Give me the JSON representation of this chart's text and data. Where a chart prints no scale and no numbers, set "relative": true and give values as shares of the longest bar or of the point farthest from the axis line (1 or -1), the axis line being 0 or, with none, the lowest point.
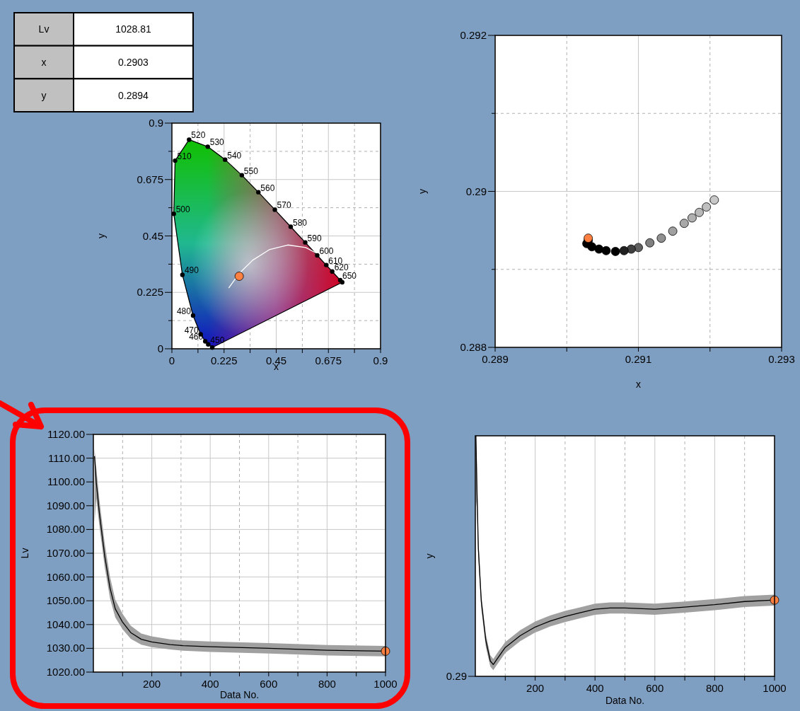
{
  "chart_data": [
    {
      "type": "other",
      "categories": [
        "Lv",
        "x",
        "y"
      ],
      "values": [
        1028.81,
        0.2903,
        0.2894
      ],
      "data_labels": true
    },
    {
      "type": "line",
      "xlabel": "x",
      "ylabel": "y",
      "xlim": [
        0,
        0.9
      ],
      "ylim": [
        0,
        0.9
      ],
      "grid": true,
      "xticks": [
        0,
        {
          "value": 0.1125,
          "label": null
        },
        0.225,
        {
          "value": 0.3375,
          "label": null
        },
        0.45,
        {
          "value": 0.5625,
          "label": null
        },
        0.675,
        {
          "value": 0.7875,
          "label": null
        },
        0.9
      ],
      "yticks": [
        0,
        {
          "value": 0.1125,
          "label": null
        },
        0.225,
        {
          "value": 0.3375,
          "label": null
        },
        0.45,
        {
          "value": 0.5625,
          "label": null
        },
        0.675,
        {
          "value": 0.7875,
          "label": null
        },
        0.9
      ],
      "series": [
        {
          "type": "line",
          "color": "#000000",
          "marker": "circle",
          "x": [
            0.1741,
            0.1566,
            0.144,
            0.1241,
            0.0913,
            0.0454,
            0.0082,
            0.0139,
            0.0743,
            0.1547,
            0.2296,
            0.3016,
            0.3731,
            0.4441,
            0.5125,
            0.5752,
            0.627,
            0.6658,
            0.6915,
            0.726,
            0.7347
          ],
          "values": [
            0.005,
            0.0177,
            0.0297,
            0.0578,
            0.1327,
            0.295,
            0.5384,
            0.7502,
            0.8338,
            0.8059,
            0.7543,
            0.6923,
            0.6245,
            0.5547,
            0.4866,
            0.4242,
            0.3725,
            0.334,
            0.3083,
            0.274,
            0.2653
          ]
        },
        {
          "type": "line",
          "color": "#000000",
          "x": [
            0.7347,
            0.1741
          ],
          "values": [
            0.2653,
            0.005
          ]
        },
        {
          "type": "line",
          "color": "#ffffff",
          "x": [
            0.245,
            0.29,
            0.348,
            0.42,
            0.5,
            0.577,
            0.62
          ],
          "values": [
            0.242,
            0.3,
            0.353,
            0.395,
            0.414,
            0.404,
            0.383
          ]
        },
        {
          "type": "scatter",
          "color": "#ff8040",
          "x": [
            0.2903
          ],
          "values": [
            0.2894
          ]
        }
      ],
      "annotations": [
        {
          "text": "450",
          "x": 0.1566,
          "y": 0.0177
        },
        {
          "text": "460",
          "x": 0.144,
          "y": 0.0297
        },
        {
          "text": "470",
          "x": 0.1241,
          "y": 0.0578
        },
        {
          "text": "480",
          "x": 0.0913,
          "y": 0.1327
        },
        {
          "text": "490",
          "x": 0.0454,
          "y": 0.295
        },
        {
          "text": "500",
          "x": 0.0082,
          "y": 0.5384
        },
        {
          "text": "510",
          "x": 0.0139,
          "y": 0.7502
        },
        {
          "text": "520",
          "x": 0.0743,
          "y": 0.8338
        },
        {
          "text": "530",
          "x": 0.1547,
          "y": 0.8059
        },
        {
          "text": "540",
          "x": 0.2296,
          "y": 0.7543
        },
        {
          "text": "550",
          "x": 0.3016,
          "y": 0.6923
        },
        {
          "text": "560",
          "x": 0.3731,
          "y": 0.6245
        },
        {
          "text": "570",
          "x": 0.4441,
          "y": 0.5547
        },
        {
          "text": "580",
          "x": 0.5125,
          "y": 0.4866
        },
        {
          "text": "590",
          "x": 0.5752,
          "y": 0.4242
        },
        {
          "text": "600",
          "x": 0.627,
          "y": 0.3725
        },
        {
          "text": "610",
          "x": 0.6658,
          "y": 0.334
        },
        {
          "text": "620",
          "x": 0.6915,
          "y": 0.3083
        },
        {
          "text": "650",
          "x": 0.726,
          "y": 0.274
        }
      ]
    },
    {
      "type": "scatter",
      "xlabel": "x",
      "ylabel": "y",
      "xlim": [
        0.289,
        0.293
      ],
      "ylim": [
        0.288,
        0.292
      ],
      "grid": true,
      "marker": "circle",
      "xticks": [
        0.289,
        {
          "value": 0.29,
          "label": null
        },
        0.291,
        {
          "value": 0.292,
          "label": null
        },
        0.293
      ],
      "yticks": [
        0.288,
        {
          "value": 0.289,
          "label": null
        },
        0.29,
        {
          "value": 0.291,
          "label": null
        },
        0.292
      ],
      "series": [
        {
          "x": [
            0.29206,
            0.29195,
            0.29185,
            0.29175,
            0.29164,
            0.29148,
            0.29132,
            0.29116,
            0.291,
            0.2909,
            0.2908,
            0.29068,
            0.29055,
            0.29045,
            0.29035,
            0.29028,
            0.2903
          ],
          "values": [
            0.28989,
            0.2898,
            0.28973,
            0.28966,
            0.28959,
            0.28949,
            0.2894,
            0.28934,
            0.28928,
            0.28926,
            0.28924,
            0.28923,
            0.28924,
            0.28926,
            0.28929,
            0.28933,
            0.28937
          ],
          "colors": [
            "#c8c8c8",
            "#c0c0c0",
            "#b8b8b8",
            "#b0b0b0",
            "#a8a8a8",
            "#a0a0a0",
            "#909090",
            "#808080",
            "#606060",
            "#404040",
            "#202020",
            "#000000",
            "#000000",
            "#000000",
            "#000000",
            "#000000",
            "#000000"
          ]
        },
        {
          "color": "#ff8040",
          "x": [
            0.2903
          ],
          "values": [
            0.2894
          ]
        }
      ]
    },
    {
      "type": "line",
      "xlabel": "Data No.",
      "ylabel": "Lv",
      "xlim": [
        0,
        1000
      ],
      "ylim": [
        1020,
        1120
      ],
      "grid": true,
      "xticks": [
        {
          "value": 100,
          "label": null
        },
        200,
        {
          "value": 300,
          "label": null
        },
        400,
        {
          "value": 500,
          "label": null
        },
        600,
        {
          "value": 700,
          "label": null
        },
        800,
        {
          "value": 900,
          "label": null
        },
        1000
      ],
      "yticks": [
        {
          "value": 1020,
          "label": "1020.00"
        },
        {
          "value": 1030,
          "label": "1030.00"
        },
        {
          "value": 1040,
          "label": "1040.00"
        },
        {
          "value": 1050,
          "label": "1050.00"
        },
        {
          "value": 1060,
          "label": "1060.00"
        },
        {
          "value": 1070,
          "label": "1070.00"
        },
        {
          "value": 1080,
          "label": "1080.00"
        },
        {
          "value": 1090,
          "label": "1090.00"
        },
        {
          "value": 1100,
          "label": "1100.00"
        },
        {
          "value": 1110,
          "label": "1110.00"
        },
        {
          "value": 1120,
          "label": "1120.00"
        }
      ],
      "series": [
        {
          "type": "line",
          "color": "#000000",
          "x": [
            4,
            10,
            21,
            39,
            57,
            75,
            100,
            128,
            164,
            200,
            263,
            307,
            400,
            600,
            800,
            1000
          ],
          "values": [
            1110.8,
            1099.7,
            1086.4,
            1068.7,
            1055.4,
            1046.6,
            1041,
            1036.6,
            1033.8,
            1032.7,
            1031.6,
            1031.1,
            1030.7,
            1030,
            1029.2,
            1028.8
          ],
          "lower": [
            1083,
            1093,
            1081,
            1064,
            1051,
            1043,
            1038,
            1034,
            1031.5,
            1030.5,
            1029.5,
            1029,
            1028.5,
            1027.8,
            1027,
            1026.6
          ],
          "upper": [
            1114,
            1106,
            1092,
            1074,
            1060,
            1050.5,
            1044.5,
            1039.5,
            1036.2,
            1035,
            1033.8,
            1033.3,
            1032.9,
            1032.2,
            1031.4,
            1031
          ]
        },
        {
          "type": "scatter",
          "color": "#ff8040",
          "x": [
            1000
          ],
          "values": [
            1028.8
          ]
        }
      ]
    },
    {
      "type": "line",
      "relative": true,
      "xlabel": "Data No.",
      "ylabel": "y",
      "xlim": [
        0,
        1000
      ],
      "grid": "x",
      "xticks": [
        {
          "value": 100,
          "label": null
        },
        200,
        {
          "value": 300,
          "label": null
        },
        400,
        {
          "value": 500,
          "label": null
        },
        600,
        {
          "value": 700,
          "label": null
        },
        800,
        {
          "value": 900,
          "label": null
        },
        1000
      ],
      "series": [
        {
          "type": "line",
          "color": "#000000",
          "x": [
            2,
            5,
            10,
            20,
            35,
            50,
            60,
            75,
            100,
            150,
            200,
            250,
            300,
            350,
            400,
            450,
            500,
            600,
            700,
            800,
            900,
            1000
          ],
          "values": [
            1,
            0.803,
            0.532,
            0.311,
            0.15,
            0.064,
            0.049,
            0.076,
            0.12,
            0.169,
            0.205,
            0.23,
            0.249,
            0.264,
            0.279,
            0.284,
            0.284,
            0.279,
            0.288,
            0.298,
            0.311,
            0.317
          ],
          "lower": [
            0.7,
            0.73,
            0.49,
            0.28,
            0.123,
            0.041,
            0.026,
            0.053,
            0.097,
            0.146,
            0.182,
            0.207,
            0.226,
            0.241,
            0.256,
            0.261,
            0.261,
            0.256,
            0.265,
            0.275,
            0.288,
            0.294
          ],
          "upper": [
            1,
            0.88,
            0.575,
            0.34,
            0.176,
            0.088,
            0.072,
            0.1,
            0.143,
            0.192,
            0.228,
            0.253,
            0.272,
            0.287,
            0.302,
            0.307,
            0.307,
            0.302,
            0.311,
            0.321,
            0.334,
            0.34
          ]
        },
        {
          "type": "scatter",
          "color": "#ff8040",
          "x": [
            1000
          ],
          "values": [
            0.317
          ]
        }
      ],
      "annotations": [
        "0.29"
      ]
    }
  ]
}
